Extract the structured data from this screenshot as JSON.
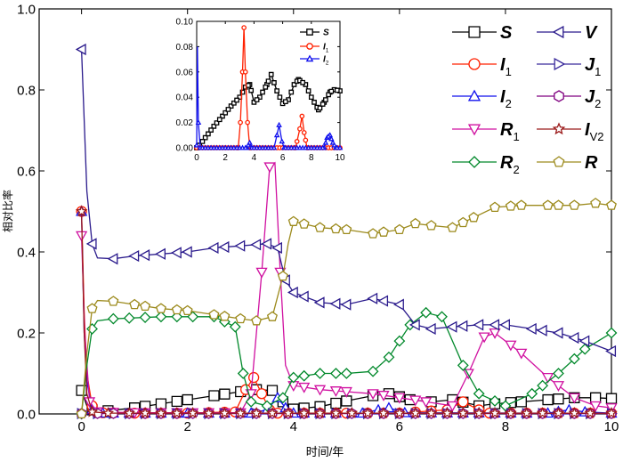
{
  "chart_data": {
    "type": "line",
    "xlabel": "时间/年",
    "ylabel": "相对比率",
    "xlim": [
      -0.8,
      10
    ],
    "ylim": [
      0,
      1.0
    ],
    "x_ticks": [
      0,
      2,
      4,
      6,
      8,
      10
    ],
    "y_ticks": [
      0.0,
      0.2,
      0.4,
      0.6,
      0.8,
      1.0
    ],
    "y_tick_labels": [
      "0.0",
      "0.2",
      "0.4",
      "0.6",
      "0.8",
      "1.0"
    ],
    "legend_position": "top-right",
    "legend": [
      {
        "key": "S",
        "main": "S",
        "sub": ""
      },
      {
        "key": "V",
        "main": "V",
        "sub": ""
      },
      {
        "key": "I1",
        "main": "I",
        "sub": "1"
      },
      {
        "key": "J1",
        "main": "J",
        "sub": "1"
      },
      {
        "key": "I2",
        "main": "I",
        "sub": "2"
      },
      {
        "key": "J2",
        "main": "J",
        "sub": "2"
      },
      {
        "key": "R1",
        "main": "R",
        "sub": "1"
      },
      {
        "key": "IV2",
        "main": "I",
        "sub": "V2"
      },
      {
        "key": "R2",
        "main": "R",
        "sub": "2"
      },
      {
        "key": "R",
        "main": "R",
        "sub": ""
      }
    ],
    "series": [
      {
        "key": "S",
        "color": "#000000",
        "marker": "square",
        "points": [
          [
            0,
            0.058
          ],
          [
            0.1,
            0.02
          ],
          [
            0.2,
            0.01
          ],
          [
            0.5,
            0.008
          ],
          [
            1,
            0.015
          ],
          [
            1.5,
            0.025
          ],
          [
            2,
            0.035
          ],
          [
            2.5,
            0.045
          ],
          [
            3,
            0.055
          ],
          [
            3.3,
            0.06
          ],
          [
            3.6,
            0.058
          ],
          [
            3.8,
            0.03
          ],
          [
            4,
            0.012
          ],
          [
            4.5,
            0.018
          ],
          [
            5,
            0.032
          ],
          [
            5.5,
            0.045
          ],
          [
            5.8,
            0.05
          ],
          [
            6.2,
            0.035
          ],
          [
            6.6,
            0.03
          ],
          [
            7,
            0.035
          ],
          [
            7.5,
            0.02
          ],
          [
            7.8,
            0.025
          ],
          [
            8.3,
            0.03
          ],
          [
            8.8,
            0.035
          ],
          [
            9.3,
            0.04
          ],
          [
            9.7,
            0.04
          ],
          [
            10,
            0.038
          ]
        ]
      },
      {
        "key": "I1",
        "color": "#ff2000",
        "marker": "circle",
        "points": [
          [
            0,
            0.5
          ],
          [
            0.05,
            0.25
          ],
          [
            0.1,
            0.1
          ],
          [
            0.2,
            0.02
          ],
          [
            0.4,
            0.003
          ],
          [
            1,
            0.002
          ],
          [
            2,
            0.002
          ],
          [
            2.9,
            0.005
          ],
          [
            3.1,
            0.06
          ],
          [
            3.25,
            0.09
          ],
          [
            3.4,
            0.05
          ],
          [
            3.55,
            0.01
          ],
          [
            3.7,
            0.002
          ],
          [
            5,
            0.002
          ],
          [
            6,
            0.002
          ],
          [
            6.9,
            0.01
          ],
          [
            7.2,
            0.03
          ],
          [
            7.5,
            0.01
          ],
          [
            7.7,
            0.002
          ],
          [
            10,
            0.002
          ]
        ]
      },
      {
        "key": "I2",
        "color": "#1010ee",
        "marker": "triangle-up",
        "points": [
          [
            0,
            0.5
          ],
          [
            0.05,
            0.2
          ],
          [
            0.1,
            0.08
          ],
          [
            0.2,
            0.01
          ],
          [
            0.4,
            0.002
          ],
          [
            2,
            0.002
          ],
          [
            3.2,
            0.002
          ],
          [
            3.5,
            0.01
          ],
          [
            3.7,
            0.04
          ],
          [
            3.85,
            0.015
          ],
          [
            4.0,
            0.002
          ],
          [
            5.3,
            0.002
          ],
          [
            5.6,
            0.01
          ],
          [
            5.8,
            0.015
          ],
          [
            6.1,
            0.003
          ],
          [
            8.8,
            0.002
          ],
          [
            9.2,
            0.01
          ],
          [
            9.5,
            0.005
          ],
          [
            10,
            0.002
          ]
        ]
      },
      {
        "key": "R1",
        "color": "#d010a0",
        "marker": "triangle-down",
        "points": [
          [
            0,
            0.44
          ],
          [
            0.06,
            0.2
          ],
          [
            0.15,
            0.03
          ],
          [
            0.3,
            0.005
          ],
          [
            1,
            0.003
          ],
          [
            3,
            0.003
          ],
          [
            3.2,
            0.05
          ],
          [
            3.4,
            0.35
          ],
          [
            3.55,
            0.61
          ],
          [
            3.65,
            0.62
          ],
          [
            3.75,
            0.35
          ],
          [
            3.85,
            0.12
          ],
          [
            4,
            0.07
          ],
          [
            4.5,
            0.06
          ],
          [
            5,
            0.055
          ],
          [
            5.5,
            0.05
          ],
          [
            6,
            0.04
          ],
          [
            6.5,
            0.03
          ],
          [
            7,
            0.02
          ],
          [
            7.3,
            0.1
          ],
          [
            7.6,
            0.19
          ],
          [
            7.8,
            0.2
          ],
          [
            8.3,
            0.15
          ],
          [
            8.8,
            0.09
          ],
          [
            9.3,
            0.04
          ],
          [
            9.7,
            0.02
          ],
          [
            10,
            0.015
          ]
        ]
      },
      {
        "key": "R2",
        "color": "#00882a",
        "marker": "diamond",
        "points": [
          [
            0,
            0.0
          ],
          [
            0.1,
            0.12
          ],
          [
            0.2,
            0.21
          ],
          [
            0.3,
            0.23
          ],
          [
            0.6,
            0.235
          ],
          [
            1.5,
            0.24
          ],
          [
            2.5,
            0.24
          ],
          [
            2.9,
            0.215
          ],
          [
            3.05,
            0.1
          ],
          [
            3.2,
            0.03
          ],
          [
            3.5,
            0.02
          ],
          [
            3.8,
            0.04
          ],
          [
            4,
            0.09
          ],
          [
            4.5,
            0.1
          ],
          [
            5,
            0.1
          ],
          [
            5.5,
            0.105
          ],
          [
            5.8,
            0.14
          ],
          [
            6.2,
            0.22
          ],
          [
            6.5,
            0.25
          ],
          [
            6.8,
            0.24
          ],
          [
            7.2,
            0.12
          ],
          [
            7.5,
            0.05
          ],
          [
            8,
            0.02
          ],
          [
            8.5,
            0.05
          ],
          [
            9,
            0.1
          ],
          [
            9.5,
            0.16
          ],
          [
            10,
            0.2
          ]
        ]
      },
      {
        "key": "V",
        "color": "#2a1a8c",
        "marker": "triangle-left",
        "points": [
          [
            0,
            0.9
          ],
          [
            0.1,
            0.55
          ],
          [
            0.2,
            0.42
          ],
          [
            0.3,
            0.385
          ],
          [
            0.6,
            0.383
          ],
          [
            1,
            0.39
          ],
          [
            1.5,
            0.395
          ],
          [
            2,
            0.4
          ],
          [
            2.5,
            0.41
          ],
          [
            3,
            0.415
          ],
          [
            3.5,
            0.42
          ],
          [
            3.7,
            0.41
          ],
          [
            3.85,
            0.33
          ],
          [
            4,
            0.3
          ],
          [
            4.5,
            0.275
          ],
          [
            5,
            0.27
          ],
          [
            5.5,
            0.285
          ],
          [
            6,
            0.27
          ],
          [
            6.3,
            0.22
          ],
          [
            6.6,
            0.21
          ],
          [
            7,
            0.215
          ],
          [
            7.5,
            0.22
          ],
          [
            8,
            0.22
          ],
          [
            8.5,
            0.21
          ],
          [
            9,
            0.2
          ],
          [
            9.5,
            0.18
          ],
          [
            10,
            0.155
          ]
        ]
      },
      {
        "key": "J1",
        "color": "#3a2a9c",
        "marker": "triangle-right",
        "points": [
          [
            0,
            0.001
          ],
          [
            10,
            0.001
          ]
        ]
      },
      {
        "key": "J2",
        "color": "#800080",
        "marker": "hexagon",
        "points": [
          [
            0,
            0.001
          ],
          [
            10,
            0.001
          ]
        ]
      },
      {
        "key": "IV2",
        "color": "#9b1a1a",
        "marker": "star",
        "points": [
          [
            0,
            0.5
          ],
          [
            0.05,
            0.2
          ],
          [
            0.1,
            0.05
          ],
          [
            0.2,
            0.005
          ],
          [
            0.5,
            0.002
          ],
          [
            10,
            0.002
          ]
        ]
      },
      {
        "key": "R",
        "color": "#9c8a1c",
        "marker": "pentagon",
        "points": [
          [
            0,
            0.0
          ],
          [
            0.1,
            0.15
          ],
          [
            0.2,
            0.26
          ],
          [
            0.3,
            0.28
          ],
          [
            0.6,
            0.278
          ],
          [
            1,
            0.27
          ],
          [
            1.5,
            0.26
          ],
          [
            2,
            0.255
          ],
          [
            2.5,
            0.245
          ],
          [
            3,
            0.235
          ],
          [
            3.3,
            0.23
          ],
          [
            3.6,
            0.24
          ],
          [
            3.8,
            0.34
          ],
          [
            3.9,
            0.42
          ],
          [
            4,
            0.475
          ],
          [
            4.5,
            0.46
          ],
          [
            5,
            0.455
          ],
          [
            5.5,
            0.445
          ],
          [
            6,
            0.455
          ],
          [
            6.3,
            0.47
          ],
          [
            6.6,
            0.465
          ],
          [
            7,
            0.46
          ],
          [
            7.4,
            0.485
          ],
          [
            7.8,
            0.51
          ],
          [
            8.3,
            0.515
          ],
          [
            8.8,
            0.515
          ],
          [
            9.3,
            0.515
          ],
          [
            9.7,
            0.52
          ],
          [
            10,
            0.515
          ]
        ]
      }
    ],
    "inset": {
      "xlim": [
        0,
        10
      ],
      "ylim": [
        0,
        0.1
      ],
      "x_ticks": [
        0,
        2,
        4,
        6,
        8,
        10
      ],
      "y_ticks": [
        0.0,
        0.02,
        0.04,
        0.06,
        0.08,
        0.1
      ],
      "y_tick_labels": [
        "0.00",
        "0.02",
        "0.04",
        "0.06",
        "0.08",
        "0.10"
      ],
      "legend": [
        {
          "key": "S",
          "main": "S",
          "sub": ""
        },
        {
          "key": "I1",
          "main": "I",
          "sub": "1"
        },
        {
          "key": "I2",
          "main": "I",
          "sub": "2"
        }
      ],
      "series": [
        {
          "key": "S",
          "color": "#000000",
          "marker": "square",
          "points": [
            [
              0,
              0.0
            ],
            [
              0.2,
              0.002
            ],
            [
              0.6,
              0.008
            ],
            [
              1.2,
              0.017
            ],
            [
              1.8,
              0.025
            ],
            [
              2.4,
              0.033
            ],
            [
              3.0,
              0.04
            ],
            [
              3.4,
              0.048
            ],
            [
              3.7,
              0.05
            ],
            [
              4.0,
              0.036
            ],
            [
              4.4,
              0.04
            ],
            [
              4.9,
              0.05
            ],
            [
              5.2,
              0.058
            ],
            [
              5.6,
              0.045
            ],
            [
              6.0,
              0.035
            ],
            [
              6.4,
              0.038
            ],
            [
              6.8,
              0.05
            ],
            [
              7.1,
              0.054
            ],
            [
              7.6,
              0.05
            ],
            [
              8.0,
              0.04
            ],
            [
              8.5,
              0.03
            ],
            [
              8.9,
              0.036
            ],
            [
              9.3,
              0.044
            ],
            [
              9.6,
              0.046
            ],
            [
              10.0,
              0.045
            ]
          ]
        },
        {
          "key": "I1",
          "color": "#ff2000",
          "marker": "circle",
          "points": [
            [
              0,
              0.0
            ],
            [
              2.9,
              0.0
            ],
            [
              3.05,
              0.02
            ],
            [
              3.2,
              0.06
            ],
            [
              3.3,
              0.095
            ],
            [
              3.4,
              0.06
            ],
            [
              3.55,
              0.02
            ],
            [
              3.7,
              0.0
            ],
            [
              6.9,
              0.0
            ],
            [
              7.2,
              0.015
            ],
            [
              7.35,
              0.025
            ],
            [
              7.5,
              0.012
            ],
            [
              7.7,
              0.0
            ],
            [
              10,
              0.0
            ]
          ]
        },
        {
          "key": "I2",
          "color": "#1010ee",
          "marker": "triangle-up",
          "points": [
            [
              0,
              0.002
            ],
            [
              0.05,
              0.08
            ],
            [
              0.12,
              0.02
            ],
            [
              0.25,
              0.0
            ],
            [
              3.5,
              0.0
            ],
            [
              3.7,
              0.004
            ],
            [
              3.85,
              0.0
            ],
            [
              5.4,
              0.0
            ],
            [
              5.6,
              0.01
            ],
            [
              5.75,
              0.018
            ],
            [
              5.95,
              0.005
            ],
            [
              6.1,
              0.0
            ],
            [
              8.9,
              0.0
            ],
            [
              9.1,
              0.008
            ],
            [
              9.3,
              0.01
            ],
            [
              9.5,
              0.004
            ],
            [
              9.7,
              0.0
            ],
            [
              10,
              0.0
            ]
          ]
        }
      ]
    }
  }
}
